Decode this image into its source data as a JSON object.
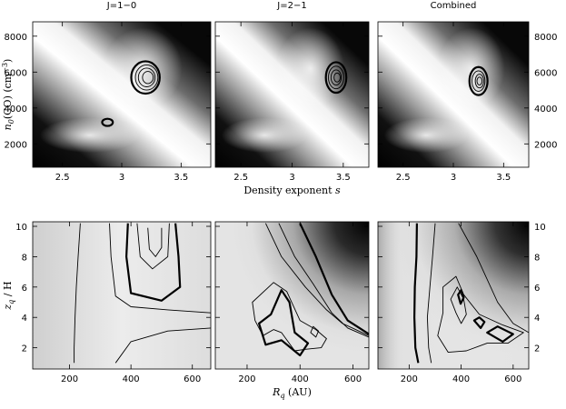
{
  "chart_data": [
    {
      "type": "heatmap",
      "row": "top",
      "xlabel": "Density exponent s",
      "xlabel_main": "Density exponent ",
      "xlabel_var": "s",
      "ylabel": "n0(CO) (cm−3)",
      "ylabel_main": "n",
      "ylabel_sub": "0",
      "ylabel_rest": "(CO) (cm",
      "ylabel_sup": "−3",
      "ylabel_close": ")",
      "xlim": [
        2.25,
        3.75
      ],
      "ylim": [
        700,
        8800
      ],
      "xticks": [
        2.5,
        3,
        3.5
      ],
      "xtick_labels": [
        "2.5",
        "3",
        "3.5"
      ],
      "yticks": [
        2000,
        4000,
        6000,
        8000
      ],
      "ytick_labels": [
        "2000",
        "4000",
        "6000",
        "8000"
      ],
      "panels": [
        {
          "title": "J=1−0",
          "best_fit": {
            "s": 3.2,
            "n0": 5700
          },
          "contours": [
            {
              "cx": 3.2,
              "cy": 5700,
              "rx": 0.12,
              "ry": 900,
              "bold": true
            },
            {
              "cx": 3.21,
              "cy": 5700,
              "rx": 0.095,
              "ry": 700,
              "bold": false
            },
            {
              "cx": 3.21,
              "cy": 5700,
              "rx": 0.07,
              "ry": 520,
              "bold": false
            },
            {
              "cx": 3.22,
              "cy": 5700,
              "rx": 0.045,
              "ry": 340,
              "bold": false
            },
            {
              "cx": 2.88,
              "cy": 3200,
              "rx": 0.045,
              "ry": 200,
              "bold": true
            }
          ]
        },
        {
          "title": "J=2−1",
          "best_fit": {
            "s": 3.43,
            "n0": 5700
          },
          "contours": [
            {
              "cx": 3.43,
              "cy": 5700,
              "rx": 0.1,
              "ry": 850,
              "bold": true
            },
            {
              "cx": 3.43,
              "cy": 5700,
              "rx": 0.075,
              "ry": 630,
              "bold": false
            },
            {
              "cx": 3.43,
              "cy": 5700,
              "rx": 0.05,
              "ry": 420,
              "bold": false
            },
            {
              "cx": 3.44,
              "cy": 5700,
              "rx": 0.03,
              "ry": 250,
              "bold": false
            }
          ]
        },
        {
          "title": "Combined",
          "best_fit": {
            "s": 3.25,
            "n0": 5500
          },
          "contours": [
            {
              "cx": 3.25,
              "cy": 5500,
              "rx": 0.09,
              "ry": 780,
              "bold": true
            },
            {
              "cx": 3.25,
              "cy": 5500,
              "rx": 0.065,
              "ry": 570,
              "bold": false
            },
            {
              "cx": 3.26,
              "cy": 5500,
              "rx": 0.042,
              "ry": 380,
              "bold": false
            },
            {
              "cx": 3.26,
              "cy": 5500,
              "rx": 0.025,
              "ry": 220,
              "bold": false
            }
          ]
        }
      ]
    },
    {
      "type": "heatmap",
      "row": "bottom",
      "xlabel": "Rq (AU)",
      "xlabel_main": "R",
      "xlabel_sub": "q",
      "xlabel_rest": " (AU)",
      "ylabel": "zq / H",
      "ylabel_main": "z",
      "ylabel_sub": "q",
      "ylabel_rest": " / H",
      "xlim": [
        80,
        660
      ],
      "ylim": [
        0.6,
        10.3
      ],
      "xticks": [
        200,
        400,
        600
      ],
      "xtick_labels": [
        "200",
        "400",
        "600"
      ],
      "yticks": [
        2,
        4,
        6,
        8,
        10
      ],
      "ytick_labels": [
        "2",
        "4",
        "6",
        "8",
        "10"
      ],
      "panels": [
        {
          "contours": [
            {
              "points": [
                [
                  235,
                  10.2
                ],
                [
                  228,
                  8
                ],
                [
                  222,
                  6
                ],
                [
                  218,
                  4
                ],
                [
                  215,
                  2
                ],
                [
                  215,
                  1
                ]
              ],
              "bold": false,
              "closed": false
            },
            {
              "points": [
                [
                  390,
                  10.2
                ],
                [
                  385,
                  8
                ],
                [
                  400,
                  5.6
                ],
                [
                  500,
                  5.1
                ],
                [
                  560,
                  6
                ],
                [
                  555,
                  8
                ],
                [
                  545,
                  10.2
                ]
              ],
              "bold": true,
              "closed": false
            },
            {
              "points": [
                [
                  420,
                  10.2
                ],
                [
                  430,
                  8
                ],
                [
                  470,
                  7.2
                ],
                [
                  520,
                  8
                ],
                [
                  525,
                  10.2
                ]
              ],
              "bold": false,
              "closed": false
            },
            {
              "points": [
                [
                  455,
                  9.9
                ],
                [
                  460,
                  8.5
                ],
                [
                  480,
                  8
                ],
                [
                  500,
                  8.6
                ],
                [
                  500,
                  9.9
                ]
              ],
              "bold": false,
              "closed": false
            },
            {
              "points": [
                [
                  330,
                  10.2
                ],
                [
                  335,
                  8
                ],
                [
                  350,
                  5.4
                ],
                [
                  400,
                  4.7
                ],
                [
                  520,
                  4.5
                ],
                [
                  660,
                  4.3
                ]
              ],
              "bold": false,
              "closed": false
            },
            {
              "points": [
                [
                  350,
                  1
                ],
                [
                  400,
                  2.4
                ],
                [
                  520,
                  3.1
                ],
                [
                  660,
                  3.3
                ]
              ],
              "bold": false,
              "closed": false
            }
          ]
        },
        {
          "contours": [
            {
              "points": [
                [
                  270,
                  10.2
                ],
                [
                  330,
                  8
                ],
                [
                  420,
                  6
                ],
                [
                  500,
                  4.5
                ],
                [
                  560,
                  3.6
                ],
                [
                  660,
                  2.8
                ]
              ],
              "bold": false,
              "closed": false
            },
            {
              "points": [
                [
                  320,
                  10.2
                ],
                [
                  380,
                  8
                ],
                [
                  450,
                  6.2
                ],
                [
                  520,
                  4.3
                ],
                [
                  580,
                  3.3
                ],
                [
                  660,
                  2.7
                ]
              ],
              "bold": false,
              "closed": false
            },
            {
              "points": [
                [
                  220,
                  5
                ],
                [
                  300,
                  6.3
                ],
                [
                  350,
                  5.7
                ],
                [
                  400,
                  3.8
                ],
                [
                  460,
                  3.2
                ],
                [
                  500,
                  2.6
                ],
                [
                  480,
                  2
                ],
                [
                  420,
                  1.9
                ],
                [
                  380,
                  1.8
                ],
                [
                  330,
                  3
                ],
                [
                  300,
                  3.2
                ],
                [
                  260,
                  2.8
                ],
                [
                  230,
                  3.8
                ]
              ],
              "bold": false,
              "closed": true
            },
            {
              "points": [
                [
                  245,
                  3.6
                ],
                [
                  290,
                  4.2
                ],
                [
                  330,
                  5.8
                ],
                [
                  360,
                  5
                ],
                [
                  380,
                  3
                ],
                [
                  430,
                  2.3
                ],
                [
                  400,
                  1.5
                ],
                [
                  330,
                  2.5
                ],
                [
                  270,
                  2.2
                ]
              ],
              "bold": true,
              "closed": true
            },
            {
              "points": [
                [
                  440,
                  3
                ],
                [
                  450,
                  3.4
                ],
                [
                  470,
                  3.1
                ],
                [
                  460,
                  2.7
                ]
              ],
              "bold": false,
              "closed": true
            },
            {
              "points": [
                [
                  400,
                  10.2
                ],
                [
                  460,
                  8
                ],
                [
                  520,
                  5.5
                ],
                [
                  580,
                  3.8
                ],
                [
                  660,
                  2.9
                ]
              ],
              "bold": true,
              "closed": false
            }
          ]
        },
        {
          "contours": [
            {
              "points": [
                [
                  230,
                  10.2
                ],
                [
                  228,
                  8
                ],
                [
                  222,
                  6
                ],
                [
                  220,
                  4
                ],
                [
                  224,
                  2
                ],
                [
                  235,
                  1
                ]
              ],
              "bold": true,
              "closed": false
            },
            {
              "points": [
                [
                  300,
                  10.2
                ],
                [
                  290,
                  8
                ],
                [
                  280,
                  6
                ],
                [
                  270,
                  4
                ],
                [
                  275,
                  2
                ],
                [
                  285,
                  1
                ]
              ],
              "bold": false,
              "closed": false
            },
            {
              "points": [
                [
                  330,
                  6
                ],
                [
                  380,
                  6.7
                ],
                [
                  410,
                  5.5
                ],
                [
                  470,
                  4.2
                ],
                [
                  560,
                  3.5
                ],
                [
                  640,
                  3
                ],
                [
                  580,
                  2.3
                ],
                [
                  500,
                  2.3
                ],
                [
                  420,
                  1.8
                ],
                [
                  350,
                  1.7
                ],
                [
                  310,
                  2.8
                ],
                [
                  330,
                  4.3
                ]
              ],
              "bold": false,
              "closed": true
            },
            {
              "points": [
                [
                  360,
                  5.2
                ],
                [
                  385,
                  6
                ],
                [
                  410,
                  5.2
                ],
                [
                  420,
                  4.2
                ],
                [
                  400,
                  3.6
                ],
                [
                  380,
                  4.3
                ]
              ],
              "bold": false,
              "closed": true
            },
            {
              "points": [
                [
                  388,
                  5.5
                ],
                [
                  400,
                  5.8
                ],
                [
                  410,
                  5.3
                ],
                [
                  398,
                  4.9
                ]
              ],
              "bold": true,
              "closed": true
            },
            {
              "points": [
                [
                  450,
                  3.8
                ],
                [
                  470,
                  4
                ],
                [
                  490,
                  3.7
                ],
                [
                  475,
                  3.3
                ]
              ],
              "bold": true,
              "closed": true
            },
            {
              "points": [
                [
                  500,
                  3
                ],
                [
                  540,
                  3.4
                ],
                [
                  600,
                  2.9
                ],
                [
                  560,
                  2.4
                ]
              ],
              "bold": true,
              "closed": true
            },
            {
              "points": [
                [
                  390,
                  10.2
                ],
                [
                  460,
                  8
                ],
                [
                  540,
                  5
                ],
                [
                  600,
                  3.6
                ],
                [
                  660,
                  3
                ]
              ],
              "bold": false,
              "closed": false
            }
          ]
        }
      ]
    }
  ]
}
